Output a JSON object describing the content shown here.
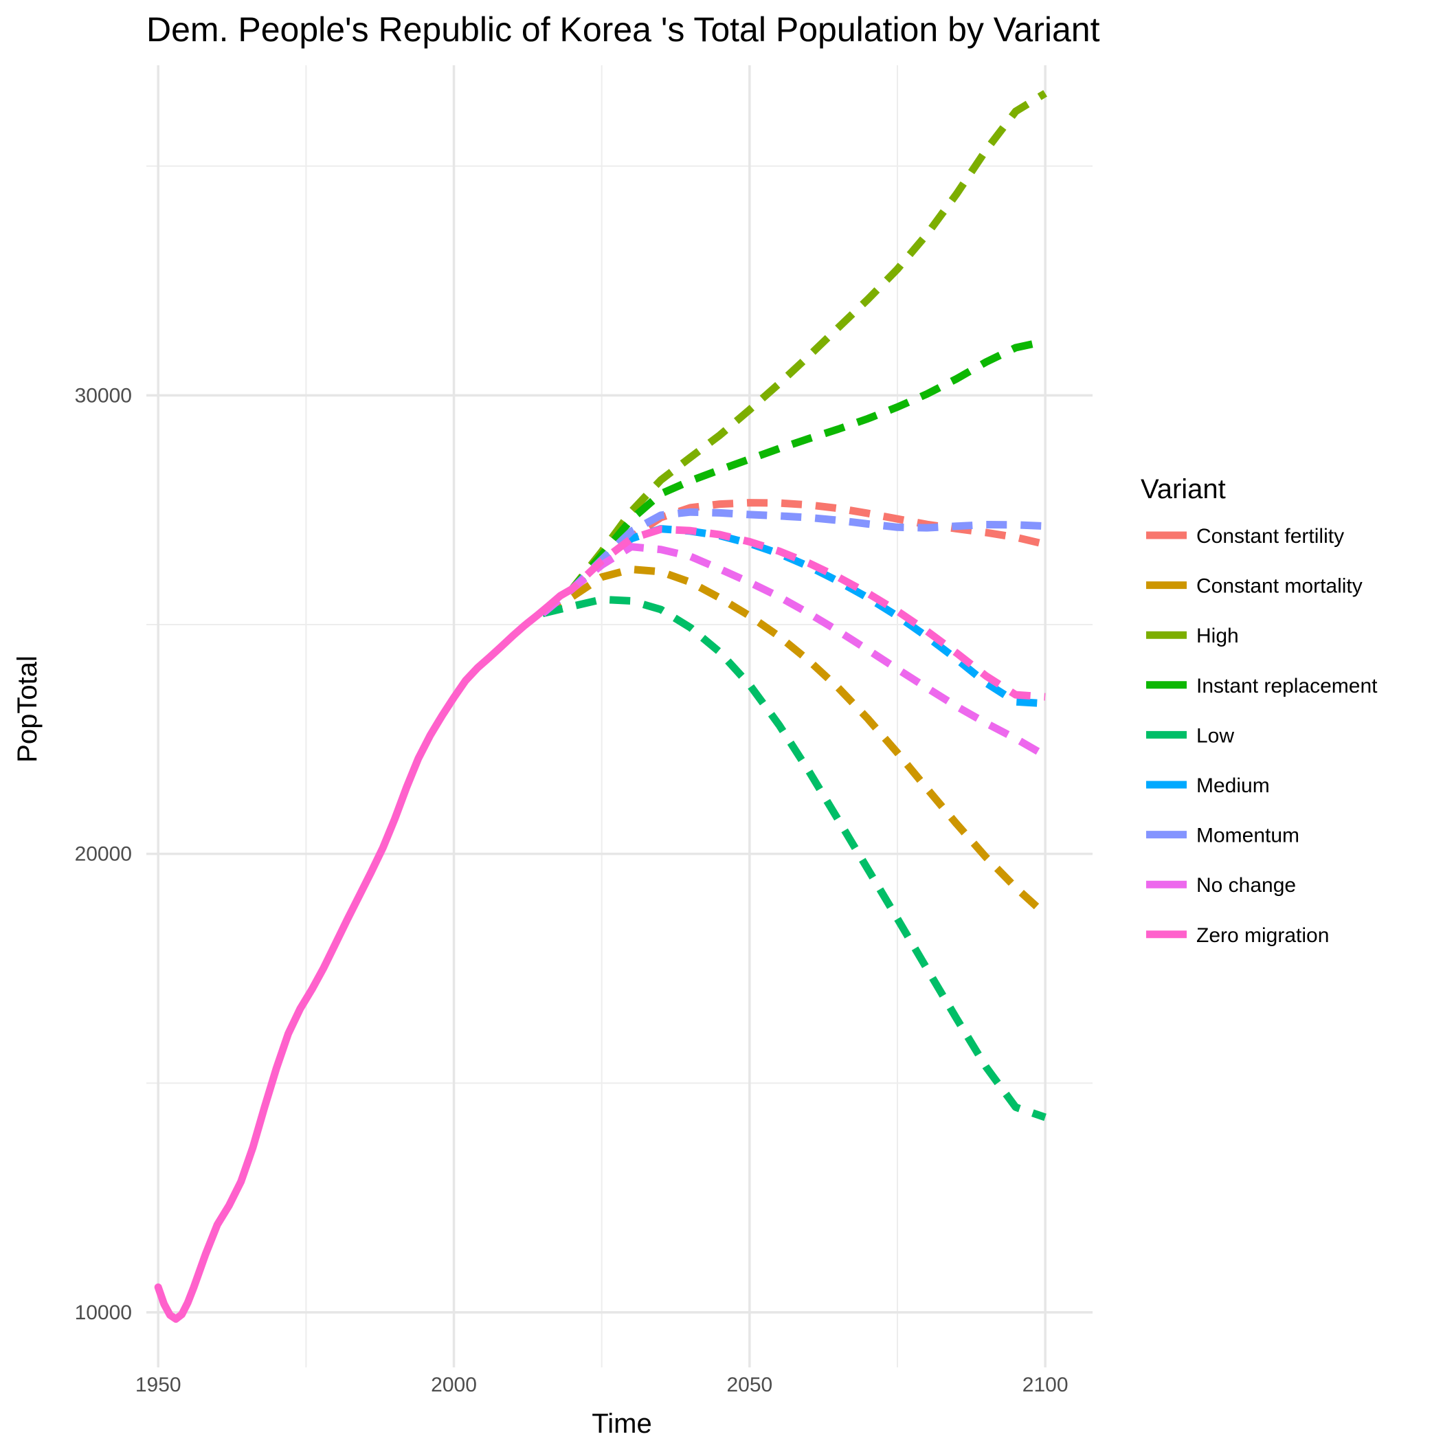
{
  "chart_data": {
    "type": "line",
    "title": "Dem. People's Republic of Korea 's Total Population by Variant",
    "xlabel": "Time",
    "ylabel": "PopTotal",
    "xlim": [
      1948,
      2108
    ],
    "ylim": [
      8800,
      37200
    ],
    "x_ticks": [
      1950,
      2000,
      2050,
      2100
    ],
    "x_tick_labels": [
      "1950",
      "2000",
      "2050",
      "2100"
    ],
    "y_ticks": [
      10000,
      20000,
      30000
    ],
    "y_tick_labels": [
      "10000",
      "20000",
      "30000"
    ],
    "grid": true,
    "legend": {
      "title": "Variant",
      "position": "right"
    },
    "series": [
      {
        "name": "Constant fertility",
        "color": "#F8766D",
        "dashed": true,
        "x": [
          2015,
          2020,
          2025,
          2030,
          2035,
          2040,
          2045,
          2050,
          2055,
          2060,
          2065,
          2070,
          2075,
          2080,
          2085,
          2090,
          2095,
          2100
        ],
        "y": [
          25244,
          25779,
          26372,
          26905,
          27335,
          27552,
          27630,
          27660,
          27652,
          27612,
          27536,
          27427,
          27305,
          27186,
          27093,
          27009,
          26906,
          26754
        ]
      },
      {
        "name": "Constant mortality",
        "color": "#CD9600",
        "dashed": true,
        "x": [
          2015,
          2020,
          2025,
          2030,
          2035,
          2040,
          2045,
          2050,
          2055,
          2060,
          2065,
          2070,
          2075,
          2080,
          2085,
          2090,
          2095,
          2100
        ],
        "y": [
          25244,
          25607,
          26038,
          26207,
          26155,
          25925,
          25580,
          25193,
          24743,
          24218,
          23624,
          22947,
          22205,
          21425,
          20656,
          19925,
          19267,
          18683
        ]
      },
      {
        "name": "High",
        "color": "#7CAE00",
        "dashed": true,
        "x": [
          2015,
          2020,
          2025,
          2030,
          2035,
          2040,
          2045,
          2050,
          2055,
          2060,
          2065,
          2070,
          2075,
          2080,
          2085,
          2090,
          2095,
          2100
        ],
        "y": [
          25244,
          25779,
          26592,
          27467,
          28154,
          28648,
          29135,
          29685,
          30257,
          30858,
          31478,
          32096,
          32754,
          33514,
          34393,
          35352,
          36195,
          36588
        ]
      },
      {
        "name": "Instant replacement",
        "color": "#0CB702",
        "dashed": true,
        "x": [
          2015,
          2020,
          2025,
          2030,
          2035,
          2040,
          2045,
          2050,
          2055,
          2060,
          2065,
          2070,
          2075,
          2080,
          2085,
          2090,
          2095,
          2100
        ],
        "y": [
          25244,
          25779,
          26521,
          27295,
          27854,
          28138,
          28378,
          28610,
          28840,
          29056,
          29264,
          29492,
          29746,
          30030,
          30362,
          30728,
          31041,
          31180
        ]
      },
      {
        "name": "Low",
        "color": "#00BE67",
        "dashed": true,
        "x": [
          2015,
          2020,
          2025,
          2030,
          2035,
          2040,
          2045,
          2050,
          2055,
          2060,
          2065,
          2070,
          2075,
          2080,
          2085,
          2090,
          2095,
          2100
        ],
        "y": [
          25244,
          25400,
          25550,
          25519,
          25330,
          24935,
          24397,
          23689,
          22809,
          21811,
          20744,
          19667,
          18588,
          17496,
          16409,
          15350,
          14476,
          14255
        ]
      },
      {
        "name": "Medium",
        "color": "#00A9FF",
        "dashed": true,
        "x": [
          2015,
          2020,
          2025,
          2030,
          2035,
          2040,
          2045,
          2050,
          2055,
          2060,
          2065,
          2070,
          2075,
          2080,
          2085,
          2090,
          2095,
          2100
        ],
        "y": [
          25244,
          25779,
          26388,
          26876,
          27090,
          27040,
          26940,
          26771,
          26549,
          26271,
          25947,
          25586,
          25187,
          24738,
          24249,
          23729,
          23318,
          23280
        ]
      },
      {
        "name": "Momentum",
        "color": "#8494FF",
        "dashed": true,
        "x": [
          2015,
          2020,
          2025,
          2030,
          2035,
          2040,
          2045,
          2050,
          2055,
          2060,
          2065,
          2070,
          2075,
          2080,
          2085,
          2090,
          2095,
          2100
        ],
        "y": [
          25244,
          25779,
          26417,
          27036,
          27387,
          27456,
          27437,
          27400,
          27372,
          27335,
          27276,
          27196,
          27125,
          27112,
          27147,
          27182,
          27177,
          27150
        ]
      },
      {
        "name": "No change",
        "color": "#ED68ED",
        "dashed": true,
        "x": [
          2015,
          2020,
          2025,
          2030,
          2035,
          2040,
          2045,
          2050,
          2055,
          2060,
          2065,
          2070,
          2075,
          2080,
          2085,
          2090,
          2095,
          2100
        ],
        "y": [
          25244,
          25779,
          26300,
          26698,
          26639,
          26488,
          26212,
          25922,
          25607,
          25248,
          24861,
          24450,
          24031,
          23620,
          23218,
          22852,
          22515,
          22145
        ]
      },
      {
        "name": "Zero migration",
        "color": "#FF61CC",
        "dashed": false,
        "x": [
          1950,
          1951,
          1952,
          1953,
          1954,
          1955,
          1956,
          1957,
          1958,
          1960,
          1962,
          1964,
          1966,
          1968,
          1970,
          1972,
          1974,
          1976,
          1978,
          1980,
          1982,
          1984,
          1986,
          1988,
          1990,
          1992,
          1994,
          1996,
          1998,
          2000,
          2002,
          2004,
          2006,
          2008,
          2010,
          2012,
          2014,
          2016,
          2018
        ],
        "y": [
          10549,
          10180,
          9942,
          9856,
          9955,
          10210,
          10544,
          10906,
          11268,
          11915,
          12336,
          12852,
          13595,
          14481,
          15327,
          16077,
          16621,
          17047,
          17519,
          18045,
          18575,
          19085,
          19598,
          20136,
          20762,
          21453,
          22084,
          22586,
          23013,
          23411,
          23783,
          24058,
          24286,
          24520,
          24761,
          24987,
          25193,
          25407,
          25630
        ]
      },
      {
        "name": "Zero migration",
        "color": "#FF61CC",
        "dashed": true,
        "x": [
          2018,
          2020,
          2025,
          2030,
          2035,
          2040,
          2045,
          2050,
          2055,
          2060,
          2065,
          2070,
          2075,
          2080,
          2085,
          2090,
          2095,
          2100
        ],
        "y": [
          25630,
          25779,
          26388,
          26876,
          27081,
          27049,
          26962,
          26808,
          26603,
          26344,
          26036,
          25686,
          25296,
          24858,
          24382,
          23879,
          23471,
          23426
        ]
      }
    ]
  }
}
